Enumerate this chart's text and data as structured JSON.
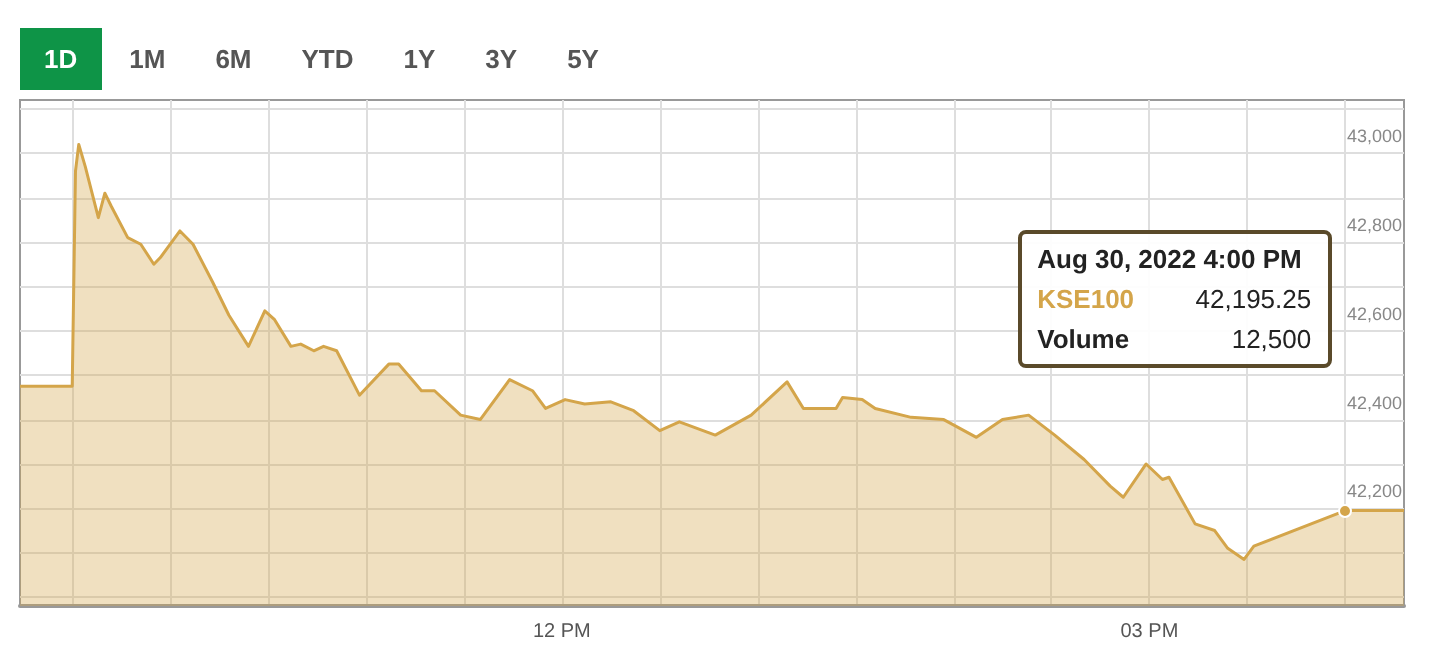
{
  "chart_data": {
    "type": "area",
    "annotations": [
      "1D",
      "1M",
      "6M",
      "YTD",
      "1Y",
      "3Y",
      "5Y",
      "Aug 30, 2022 4:00 PM",
      "42,195.25",
      "Volume",
      "12,500"
    ],
    "x": [
      "2022-08-30T09:14",
      "2022-08-30T09:30",
      "2022-08-30T09:31",
      "2022-08-30T09:32",
      "2022-08-30T09:34",
      "2022-08-30T09:38",
      "2022-08-30T09:40",
      "2022-08-30T09:42",
      "2022-08-30T09:47",
      "2022-08-30T09:51",
      "2022-08-30T09:55",
      "2022-08-30T09:57",
      "2022-08-30T10:03",
      "2022-08-30T10:07",
      "2022-08-30T10:13",
      "2022-08-30T10:18",
      "2022-08-30T10:24",
      "2022-08-30T10:29",
      "2022-08-30T10:32",
      "2022-08-30T10:37",
      "2022-08-30T10:40",
      "2022-08-30T10:44",
      "2022-08-30T10:47",
      "2022-08-30T10:51",
      "2022-08-30T10:58",
      "2022-08-30T11:07",
      "2022-08-30T11:10",
      "2022-08-30T11:17",
      "2022-08-30T11:21",
      "2022-08-30T11:29",
      "2022-08-30T11:35",
      "2022-08-30T11:44",
      "2022-08-30T11:51",
      "2022-08-30T11:55",
      "2022-08-30T12:01",
      "2022-08-30T12:07",
      "2022-08-30T12:15",
      "2022-08-30T12:22",
      "2022-08-30T12:30",
      "2022-08-30T12:36",
      "2022-08-30T12:47",
      "2022-08-30T12:58",
      "2022-08-30T13:09",
      "2022-08-30T13:14",
      "2022-08-30T13:24",
      "2022-08-30T13:26",
      "2022-08-30T13:32",
      "2022-08-30T13:36",
      "2022-08-30T13:47",
      "2022-08-30T13:57",
      "2022-08-30T14:07",
      "2022-08-30T14:15",
      "2022-08-30T14:23",
      "2022-08-30T14:31",
      "2022-08-30T14:40",
      "2022-08-30T14:48",
      "2022-08-30T14:52",
      "2022-08-30T14:59",
      "2022-08-30T15:04",
      "2022-08-30T15:06",
      "2022-08-30T15:14",
      "2022-08-30T15:20",
      "2022-08-30T15:24",
      "2022-08-30T15:29",
      "2022-08-30T15:32",
      "2022-08-30T16:00",
      "2022-08-30T16:18"
    ],
    "series": [
      {
        "name": "KSE100",
        "color": "#d4a54a",
        "values": [
          42475,
          42475,
          42960,
          43020,
          42970,
          42855,
          42910,
          42880,
          42810,
          42795,
          42750,
          42765,
          42825,
          42795,
          42710,
          42635,
          42565,
          42645,
          42625,
          42565,
          42570,
          42555,
          42565,
          42555,
          42455,
          42525,
          42525,
          42465,
          42465,
          42410,
          42400,
          42490,
          42465,
          42425,
          42445,
          42435,
          42440,
          42420,
          42375,
          42395,
          42365,
          42410,
          42485,
          42425,
          42425,
          42450,
          42445,
          42425,
          42405,
          42400,
          42360,
          42400,
          42410,
          42365,
          42310,
          42250,
          42225,
          42300,
          42265,
          42270,
          42165,
          42150,
          42110,
          42085,
          42115,
          42195,
          42195
        ]
      }
    ],
    "xlim": [
      "2022-08-30T09:14",
      "2022-08-30T16:18"
    ],
    "xticks": [
      {
        "value": "2022-08-30T09:30",
        "label": null
      },
      {
        "value": "2022-08-30T10:00",
        "label": null
      },
      {
        "value": "2022-08-30T10:30",
        "label": null
      },
      {
        "value": "2022-08-30T11:00",
        "label": null
      },
      {
        "value": "2022-08-30T11:30",
        "label": null
      },
      {
        "value": "2022-08-30T12:00",
        "label": "12 PM"
      },
      {
        "value": "2022-08-30T12:30",
        "label": null
      },
      {
        "value": "2022-08-30T13:00",
        "label": null
      },
      {
        "value": "2022-08-30T13:30",
        "label": null
      },
      {
        "value": "2022-08-30T14:00",
        "label": null
      },
      {
        "value": "2022-08-30T14:30",
        "label": null
      },
      {
        "value": "2022-08-30T15:00",
        "label": "03 PM"
      },
      {
        "value": "2022-08-30T15:30",
        "label": null
      },
      {
        "value": "2022-08-30T16:00",
        "label": null
      }
    ],
    "ylim": [
      41980,
      43120
    ],
    "yticks": [
      {
        "value": 42000,
        "label": null
      },
      {
        "value": 42100,
        "label": null
      },
      {
        "value": 42200,
        "label": "42,200"
      },
      {
        "value": 42300,
        "label": null
      },
      {
        "value": 42400,
        "label": "42,400"
      },
      {
        "value": 42500,
        "label": null
      },
      {
        "value": 42600,
        "label": "42,600"
      },
      {
        "value": 42700,
        "label": null
      },
      {
        "value": 42800,
        "label": "42,800"
      },
      {
        "value": 42900,
        "label": null
      },
      {
        "value": 43000,
        "label": "43,000"
      },
      {
        "value": 43100,
        "label": null
      }
    ],
    "grid": true,
    "legend": false,
    "marker": "none",
    "line_style": "solid"
  }
}
